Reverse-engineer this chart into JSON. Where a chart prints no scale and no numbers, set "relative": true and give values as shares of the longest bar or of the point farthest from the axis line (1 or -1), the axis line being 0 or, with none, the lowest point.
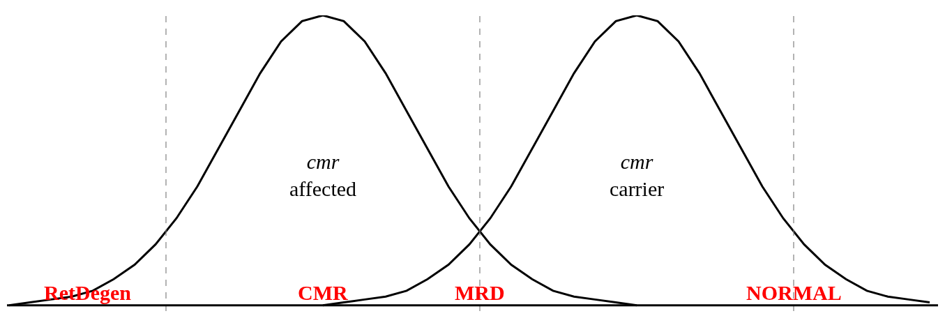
{
  "chart_data": {
    "type": "line",
    "relative": true,
    "categories": [
      null,
      null,
      null,
      null,
      null,
      null,
      null,
      null,
      null,
      null,
      null,
      null,
      null,
      null,
      null,
      null,
      null,
      null,
      null,
      null,
      null,
      null,
      null,
      null,
      null,
      null,
      null,
      null,
      null,
      null,
      null,
      null,
      null,
      null,
      null,
      null,
      null,
      null,
      null,
      null,
      null,
      null,
      null,
      null,
      null
    ],
    "series": [
      {
        "color": "#000000",
        "values": [
          0,
          0.01,
          0.02,
          0.03,
          0.05,
          0.09,
          0.14,
          0.21,
          0.3,
          0.41,
          0.54,
          0.67,
          0.8,
          0.91,
          0.98,
          1,
          0.98,
          0.91,
          0.8,
          0.67,
          0.54,
          0.41,
          0.3,
          0.21,
          0.14,
          0.09,
          0.05,
          0.03,
          0.02,
          0.01,
          0,
          null,
          null,
          null,
          null,
          null,
          null,
          null,
          null,
          null,
          null,
          null,
          null,
          null,
          null
        ]
      },
      {
        "color": "#000000",
        "values": [
          null,
          null,
          null,
          null,
          null,
          null,
          null,
          null,
          null,
          null,
          null,
          null,
          null,
          null,
          null,
          0,
          0.01,
          0.02,
          0.03,
          0.05,
          0.09,
          0.14,
          0.21,
          0.3,
          0.41,
          0.54,
          0.67,
          0.8,
          0.91,
          0.98,
          1,
          0.98,
          0.91,
          0.8,
          0.67,
          0.54,
          0.41,
          0.3,
          0.21,
          0.14,
          0.09,
          0.05,
          0.03,
          0.02,
          0.01
        ]
      }
    ],
    "annotations": [
      "cmr\naffected",
      "cmr\ncarrier",
      "RetDegen",
      "CMR",
      "MRD",
      "NORMAL"
    ],
    "marker": "none",
    "line_style": "solid"
  }
}
